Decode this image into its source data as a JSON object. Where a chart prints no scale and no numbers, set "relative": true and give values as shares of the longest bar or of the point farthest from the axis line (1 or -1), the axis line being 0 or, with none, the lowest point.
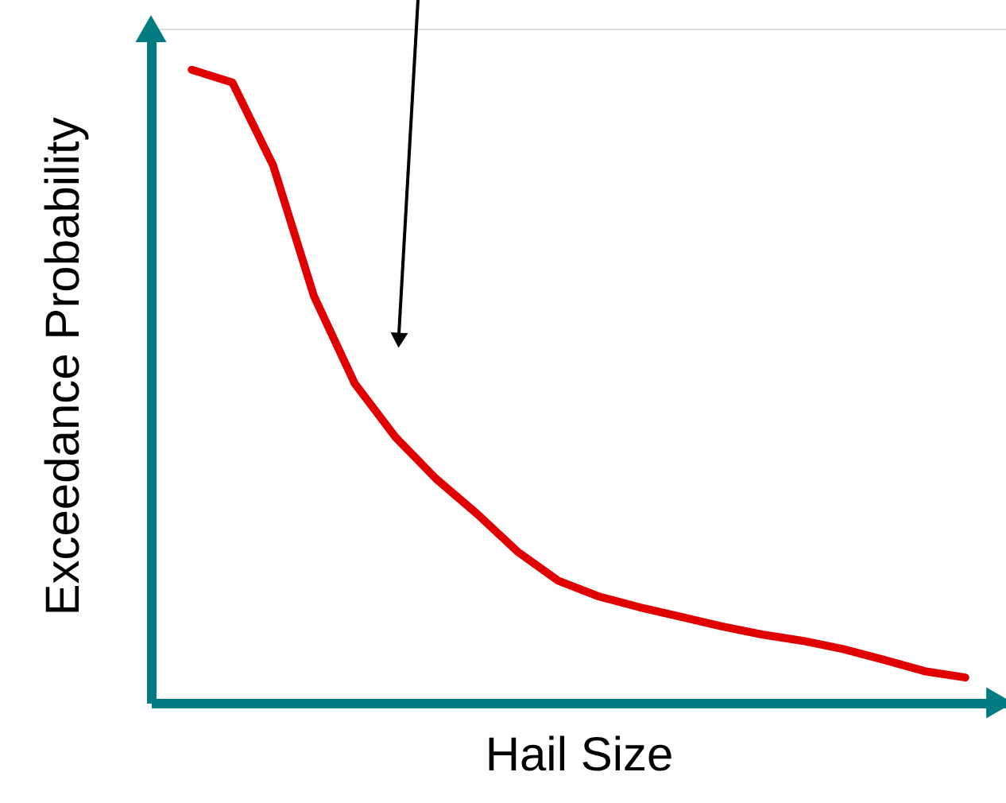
{
  "chart_data": {
    "type": "line",
    "xlabel": "Hail Size",
    "ylabel": "Exceedance Probability",
    "relative": true,
    "tick_labels": false,
    "categories": [
      null,
      null,
      null,
      null,
      null,
      null,
      null,
      null,
      null,
      null,
      null,
      null,
      null,
      null,
      null,
      null,
      null,
      null,
      null,
      null
    ],
    "series": [
      {
        "color": "#e00000",
        "values": [
          1.0,
          0.98,
          0.849,
          0.643,
          0.505,
          0.42,
          0.354,
          0.299,
          0.239,
          0.193,
          0.168,
          0.151,
          0.136,
          0.121,
          0.108,
          0.098,
          0.085,
          0.068,
          0.05,
          0.04
        ]
      }
    ]
  }
}
